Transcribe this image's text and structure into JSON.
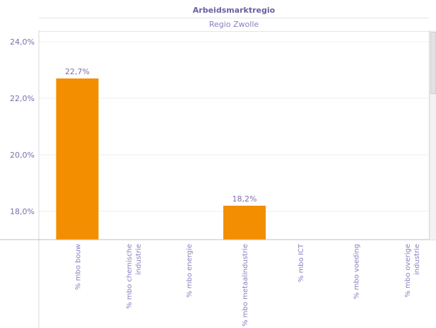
{
  "header": {
    "title": "Arbeidsmarktregio",
    "subtitle": "Regio Zwolle"
  },
  "chart_data": {
    "type": "bar",
    "categories": [
      "% mbo bouw",
      "% mbo chemische industrie",
      "% mbo energie",
      "% mbo metaalindustrie",
      "% mbo ICT",
      "% mbo voeding",
      "% mbo overige industrie"
    ],
    "category_lines": [
      [
        "% mbo bouw"
      ],
      [
        "% mbo chemische",
        "industrie"
      ],
      [
        "% mbo energie"
      ],
      [
        "% mbo metaalindustrie"
      ],
      [
        "% mbo ICT"
      ],
      [
        "% mbo voeding"
      ],
      [
        "% mbo overige",
        "industrie"
      ]
    ],
    "values": [
      22.7,
      null,
      null,
      18.2,
      null,
      null,
      null
    ],
    "data_labels": [
      "22,7%",
      "",
      "",
      "18,2%",
      "",
      "",
      ""
    ],
    "yticks": [
      18.0,
      20.0,
      22.0,
      24.0
    ],
    "ytick_labels": [
      "18,0%",
      "20,0%",
      "22,0%",
      "24,0%"
    ],
    "ylim": [
      17.0,
      24.4
    ],
    "bar_color": "#f28e00",
    "grid": true
  }
}
